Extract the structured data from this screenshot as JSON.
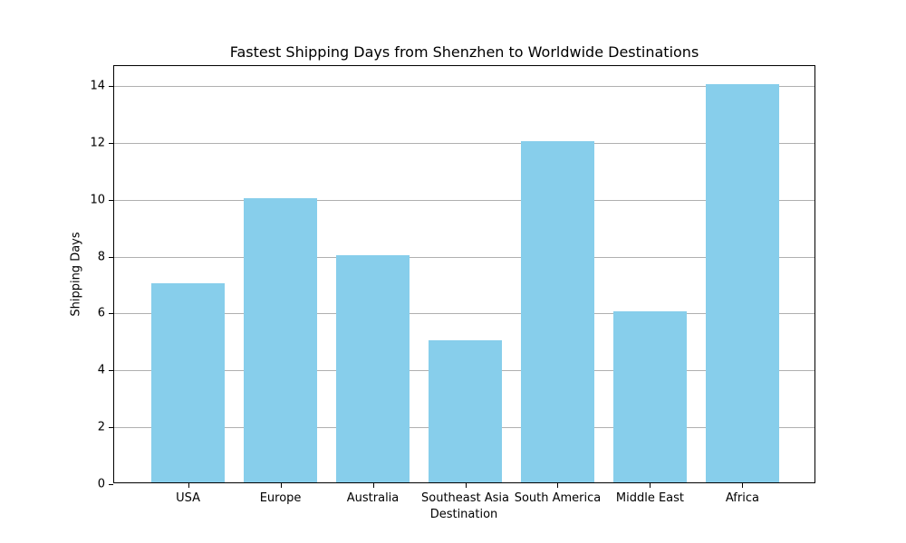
{
  "chart_data": {
    "type": "bar",
    "title": "Fastest Shipping Days from Shenzhen to Worldwide Destinations",
    "xlabel": "Destination",
    "ylabel": "Shipping Days",
    "categories": [
      "USA",
      "Europe",
      "Australia",
      "Southeast Asia",
      "South America",
      "Middle East",
      "Africa"
    ],
    "values": [
      7,
      10,
      8,
      5,
      12,
      6,
      14
    ],
    "ylim": [
      0,
      14.7
    ],
    "yticks": [
      0,
      2,
      4,
      6,
      8,
      10,
      12,
      14
    ],
    "grid": "y",
    "bar_color": "#87ceeb",
    "legend": null
  }
}
